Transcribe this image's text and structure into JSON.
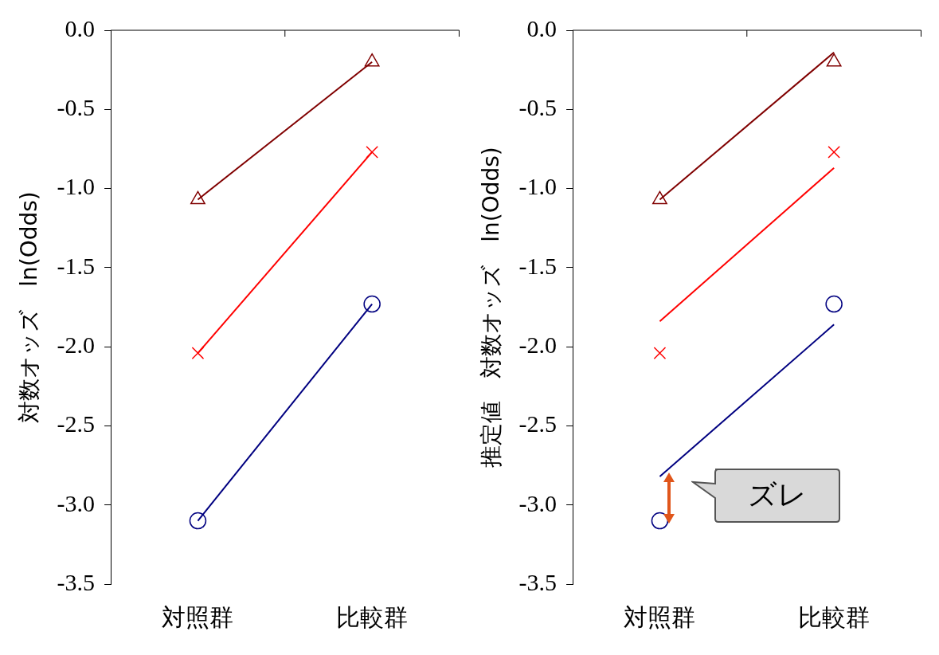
{
  "chart_data": [
    {
      "type": "line",
      "categories": [
        "対照群",
        "比較群"
      ],
      "ylabel": "対数オッズ　ln(Odds)",
      "ylim": [
        -3.5,
        0
      ],
      "yticks": [
        {
          "value": 0,
          "label": "0.0"
        },
        -0.5,
        {
          "value": -1,
          "label": "-1.0"
        },
        -1.5,
        {
          "value": -2,
          "label": "-2.0"
        },
        -2.5,
        {
          "value": -3,
          "label": "-3.0"
        },
        -3.5
      ],
      "series": [
        {
          "color": "#800000",
          "marker": "triangle",
          "values": [
            -1.07,
            -0.2
          ]
        },
        {
          "color": "#ff0000",
          "marker": "cross",
          "values": [
            -2.04,
            -0.77
          ]
        },
        {
          "color": "#000080",
          "marker": "circle",
          "values": [
            -3.1,
            -1.73
          ]
        }
      ]
    },
    {
      "type": "line",
      "categories": [
        "対照群",
        "比較群"
      ],
      "ylabel": "推定値　対数オッズ　ln(Odds)",
      "ylim": [
        -3.5,
        0
      ],
      "yticks": [
        {
          "value": 0,
          "label": "0.0"
        },
        -0.5,
        {
          "value": -1,
          "label": "-1.0"
        },
        -1.5,
        {
          "value": -2,
          "label": "-2.0"
        },
        -2.5,
        {
          "value": -3,
          "label": "-3.0"
        },
        -3.5
      ],
      "annotations": [
        "ズレ"
      ],
      "series": [
        {
          "type": "scatter",
          "color": "#800000",
          "marker": "triangle",
          "values": [
            -1.07,
            -0.2
          ]
        },
        {
          "type": "scatter",
          "color": "#ff0000",
          "marker": "cross",
          "values": [
            -2.04,
            -0.77
          ]
        },
        {
          "type": "scatter",
          "color": "#000080",
          "marker": "circle",
          "values": [
            -3.1,
            -1.73
          ]
        },
        {
          "type": "line",
          "color": "#800000",
          "marker": "none",
          "values": [
            -1.07,
            -0.14
          ]
        },
        {
          "type": "line",
          "color": "#ff0000",
          "marker": "none",
          "values": [
            -1.84,
            -0.87
          ]
        },
        {
          "type": "line",
          "color": "#000080",
          "marker": "none",
          "values": [
            -2.82,
            -1.86
          ]
        }
      ]
    }
  ]
}
